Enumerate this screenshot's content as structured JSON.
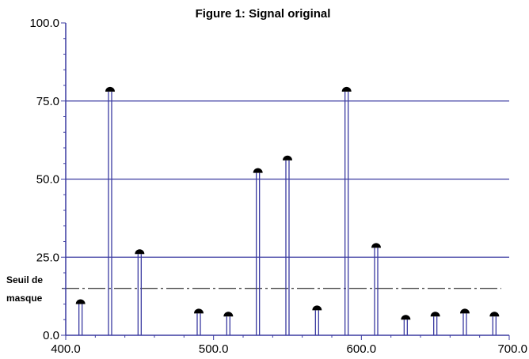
{
  "chart_data": {
    "type": "stem",
    "title": "Figure 1: Signal original",
    "xlabel": "",
    "ylabel": "",
    "xlim": [
      400,
      700
    ],
    "ylim": [
      0,
      100
    ],
    "x_ticks": [
      "400.0",
      "500.0",
      "600.0",
      "700.0"
    ],
    "y_ticks": [
      "0.0",
      "25.0",
      "50.0",
      "75.0",
      "100.0"
    ],
    "gridlines_y": [
      25,
      50,
      75
    ],
    "x": [
      410,
      430,
      450,
      490,
      510,
      530,
      550,
      570,
      590,
      610,
      630,
      650,
      670,
      690
    ],
    "values": [
      10,
      78,
      26,
      7,
      6,
      52,
      56,
      8,
      78,
      28,
      5,
      6,
      7,
      6
    ],
    "threshold": {
      "value": 15,
      "label_line1": "Seuil de",
      "label_line2": "masque"
    },
    "colors": {
      "stem": "#3a3aa0",
      "grid": "#3a3aa0",
      "marker": "#000000",
      "threshold": "#000000"
    }
  }
}
